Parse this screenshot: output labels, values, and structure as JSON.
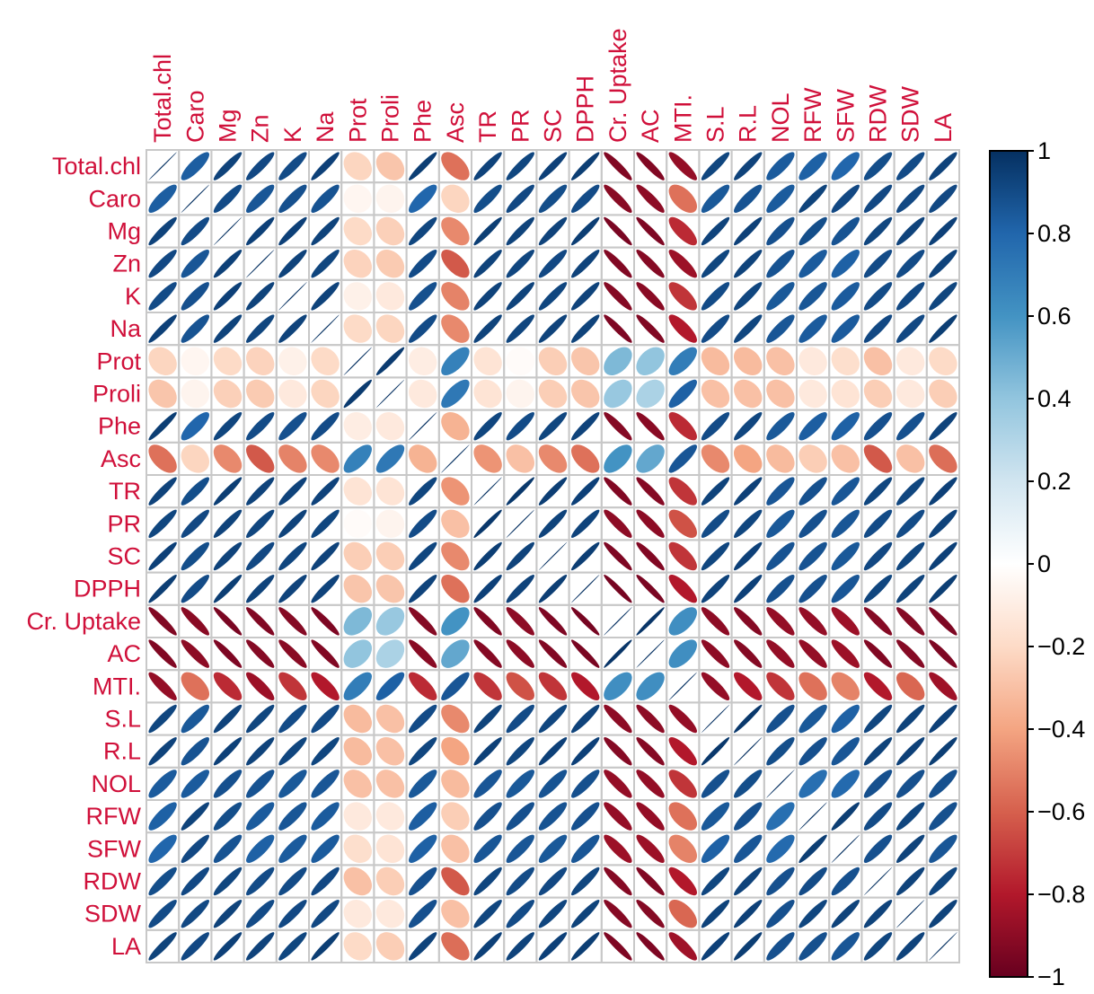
{
  "chart_data": {
    "type": "heatmap",
    "subtype": "correlation-ellipse",
    "variables": [
      "Total.chl",
      "Caro",
      "Mg",
      "Zn",
      "K",
      "Na",
      "Prot",
      "Proli",
      "Phe",
      "Asc",
      "TR",
      "PR",
      "SC",
      "DPPH",
      "Cr. Uptake",
      "AC",
      "MTI.",
      "S.L",
      "R.L",
      "NOL",
      "RFW",
      "SFW",
      "RDW",
      "SDW",
      "LA"
    ],
    "matrix": [
      [
        1.0,
        0.83,
        0.93,
        0.91,
        0.9,
        0.94,
        -0.22,
        -0.28,
        0.95,
        -0.55,
        0.93,
        0.92,
        0.94,
        0.95,
        -0.93,
        -0.93,
        -0.88,
        0.92,
        0.93,
        0.84,
        0.82,
        0.8,
        0.89,
        0.9,
        0.93
      ],
      [
        0.83,
        1.0,
        0.9,
        0.86,
        0.88,
        0.87,
        -0.05,
        -0.06,
        0.8,
        -0.22,
        0.89,
        0.91,
        0.89,
        0.9,
        -0.91,
        -0.9,
        -0.55,
        0.85,
        0.87,
        0.84,
        0.93,
        0.91,
        0.91,
        0.91,
        0.91
      ],
      [
        0.93,
        0.9,
        1.0,
        0.94,
        0.94,
        0.93,
        -0.2,
        -0.24,
        0.92,
        -0.48,
        0.95,
        0.93,
        0.93,
        0.95,
        -0.95,
        -0.94,
        -0.75,
        0.93,
        0.94,
        0.88,
        0.89,
        0.87,
        0.92,
        0.93,
        0.94
      ],
      [
        0.91,
        0.86,
        0.94,
        1.0,
        0.93,
        0.92,
        -0.23,
        -0.26,
        0.9,
        -0.62,
        0.93,
        0.92,
        0.91,
        0.93,
        -0.93,
        -0.92,
        -0.86,
        0.92,
        0.93,
        0.87,
        0.84,
        0.82,
        0.9,
        0.9,
        0.93
      ],
      [
        0.9,
        0.88,
        0.94,
        0.93,
        1.0,
        0.93,
        -0.08,
        -0.12,
        0.88,
        -0.5,
        0.93,
        0.93,
        0.92,
        0.93,
        -0.92,
        -0.91,
        -0.72,
        0.9,
        0.92,
        0.85,
        0.86,
        0.84,
        0.9,
        0.91,
        0.92
      ],
      [
        0.94,
        0.87,
        0.93,
        0.92,
        0.93,
        1.0,
        -0.2,
        -0.22,
        0.9,
        -0.48,
        0.93,
        0.92,
        0.93,
        0.93,
        -0.94,
        -0.93,
        -0.8,
        0.9,
        0.92,
        0.86,
        0.84,
        0.84,
        0.91,
        0.91,
        0.95
      ],
      [
        -0.22,
        -0.05,
        -0.2,
        -0.23,
        -0.08,
        -0.2,
        1.0,
        0.96,
        -0.1,
        0.68,
        -0.15,
        -0.02,
        -0.25,
        -0.28,
        0.45,
        0.4,
        0.7,
        -0.32,
        -0.32,
        -0.3,
        -0.12,
        -0.18,
        -0.3,
        -0.12,
        -0.2
      ],
      [
        -0.28,
        -0.06,
        -0.24,
        -0.26,
        -0.12,
        -0.22,
        0.96,
        1.0,
        -0.12,
        0.72,
        -0.15,
        -0.06,
        -0.25,
        -0.28,
        0.38,
        0.32,
        0.82,
        -0.3,
        -0.3,
        -0.3,
        -0.12,
        -0.15,
        -0.25,
        -0.12,
        -0.25
      ],
      [
        0.95,
        0.8,
        0.92,
        0.9,
        0.88,
        0.9,
        -0.1,
        -0.12,
        1.0,
        -0.35,
        0.92,
        0.9,
        0.92,
        0.93,
        -0.92,
        -0.91,
        -0.75,
        0.9,
        0.92,
        0.85,
        0.83,
        0.82,
        0.88,
        0.88,
        0.93
      ],
      [
        -0.55,
        -0.22,
        -0.48,
        -0.62,
        -0.5,
        -0.48,
        0.68,
        0.72,
        -0.35,
        1.0,
        -0.45,
        -0.3,
        -0.48,
        -0.55,
        0.6,
        0.52,
        0.86,
        -0.48,
        -0.4,
        -0.32,
        -0.25,
        -0.3,
        -0.62,
        -0.3,
        -0.56
      ],
      [
        0.93,
        0.89,
        0.95,
        0.93,
        0.93,
        0.93,
        -0.15,
        -0.15,
        0.92,
        -0.45,
        1.0,
        0.97,
        0.95,
        0.94,
        -0.93,
        -0.92,
        -0.72,
        0.93,
        0.94,
        0.86,
        0.88,
        0.86,
        0.92,
        0.92,
        0.94
      ],
      [
        0.92,
        0.91,
        0.93,
        0.92,
        0.93,
        0.92,
        -0.02,
        -0.06,
        0.9,
        -0.3,
        0.97,
        1.0,
        0.93,
        0.93,
        -0.9,
        -0.9,
        -0.64,
        0.9,
        0.92,
        0.85,
        0.88,
        0.86,
        0.9,
        0.9,
        0.93
      ],
      [
        0.94,
        0.89,
        0.93,
        0.91,
        0.92,
        0.93,
        -0.25,
        -0.25,
        0.92,
        -0.48,
        0.95,
        0.93,
        1.0,
        0.95,
        -0.94,
        -0.93,
        -0.72,
        0.92,
        0.94,
        0.87,
        0.87,
        0.85,
        0.91,
        0.92,
        0.94
      ],
      [
        0.95,
        0.9,
        0.95,
        0.93,
        0.93,
        0.93,
        -0.28,
        -0.28,
        0.93,
        -0.55,
        0.94,
        0.93,
        0.95,
        1.0,
        -0.96,
        -0.95,
        -0.8,
        0.93,
        0.94,
        0.88,
        0.88,
        0.86,
        0.92,
        0.93,
        0.95
      ],
      [
        -0.93,
        -0.91,
        -0.95,
        -0.93,
        -0.92,
        -0.94,
        0.45,
        0.38,
        -0.92,
        0.6,
        -0.93,
        -0.9,
        -0.94,
        -0.96,
        1.0,
        0.98,
        0.62,
        -0.9,
        -0.92,
        -0.88,
        -0.88,
        -0.86,
        -0.92,
        -0.92,
        -0.94
      ],
      [
        -0.93,
        -0.9,
        -0.94,
        -0.92,
        -0.91,
        -0.93,
        0.4,
        0.32,
        -0.91,
        0.52,
        -0.92,
        -0.9,
        -0.93,
        -0.95,
        0.98,
        1.0,
        0.62,
        -0.9,
        -0.92,
        -0.88,
        -0.88,
        -0.86,
        -0.93,
        -0.92,
        -0.94
      ],
      [
        -0.88,
        -0.55,
        -0.75,
        -0.86,
        -0.72,
        -0.8,
        0.7,
        0.82,
        -0.75,
        0.86,
        -0.72,
        -0.64,
        -0.72,
        -0.8,
        0.62,
        0.62,
        1.0,
        -0.88,
        -0.8,
        -0.72,
        -0.55,
        -0.5,
        -0.8,
        -0.58,
        -0.85
      ],
      [
        0.92,
        0.85,
        0.93,
        0.92,
        0.9,
        0.9,
        -0.32,
        -0.3,
        0.9,
        -0.48,
        0.93,
        0.9,
        0.92,
        0.93,
        -0.9,
        -0.9,
        -0.88,
        1.0,
        0.97,
        0.88,
        0.85,
        0.82,
        0.92,
        0.93,
        0.94
      ],
      [
        0.93,
        0.87,
        0.94,
        0.93,
        0.92,
        0.92,
        -0.32,
        -0.3,
        0.92,
        -0.4,
        0.94,
        0.92,
        0.94,
        0.94,
        -0.92,
        -0.92,
        -0.8,
        0.97,
        1.0,
        0.89,
        0.88,
        0.86,
        0.93,
        0.94,
        0.95
      ],
      [
        0.84,
        0.84,
        0.88,
        0.87,
        0.85,
        0.86,
        -0.3,
        -0.3,
        0.85,
        -0.32,
        0.86,
        0.85,
        0.87,
        0.88,
        -0.88,
        -0.88,
        -0.72,
        0.88,
        0.89,
        1.0,
        0.76,
        0.78,
        0.88,
        0.88,
        0.88
      ],
      [
        0.82,
        0.93,
        0.89,
        0.84,
        0.86,
        0.84,
        -0.12,
        -0.12,
        0.83,
        -0.25,
        0.88,
        0.88,
        0.87,
        0.88,
        -0.88,
        -0.88,
        -0.55,
        0.85,
        0.88,
        0.76,
        1.0,
        0.95,
        0.9,
        0.92,
        0.88
      ],
      [
        0.8,
        0.91,
        0.87,
        0.82,
        0.84,
        0.84,
        -0.18,
        -0.15,
        0.82,
        -0.3,
        0.86,
        0.86,
        0.85,
        0.86,
        -0.86,
        -0.86,
        -0.5,
        0.82,
        0.86,
        0.78,
        0.95,
        1.0,
        0.88,
        0.93,
        0.86
      ],
      [
        0.89,
        0.91,
        0.92,
        0.9,
        0.9,
        0.91,
        -0.3,
        -0.25,
        0.88,
        -0.62,
        0.92,
        0.9,
        0.91,
        0.92,
        -0.92,
        -0.93,
        -0.8,
        0.92,
        0.93,
        0.88,
        0.9,
        0.88,
        1.0,
        0.93,
        0.92
      ],
      [
        0.9,
        0.91,
        0.93,
        0.9,
        0.91,
        0.91,
        -0.12,
        -0.12,
        0.88,
        -0.3,
        0.92,
        0.9,
        0.92,
        0.93,
        -0.92,
        -0.92,
        -0.58,
        0.93,
        0.94,
        0.88,
        0.92,
        0.93,
        0.93,
        1.0,
        0.93
      ],
      [
        0.93,
        0.91,
        0.94,
        0.93,
        0.92,
        0.95,
        -0.2,
        -0.25,
        0.93,
        -0.56,
        0.94,
        0.93,
        0.94,
        0.95,
        -0.94,
        -0.94,
        -0.85,
        0.94,
        0.95,
        0.88,
        0.88,
        0.86,
        0.92,
        0.93,
        1.0
      ]
    ],
    "colorbar": {
      "range": [
        -1,
        1
      ],
      "ticks": [
        "1",
        "0.8",
        "0.6",
        "0.4",
        "0.2",
        "0",
        "−0.2",
        "−0.4",
        "−0.6",
        "−0.8",
        "−1"
      ],
      "colors": [
        "#67001f",
        "#b2182b",
        "#d6604d",
        "#f4a582",
        "#fddbc7",
        "#ffffff",
        "#d1e5f0",
        "#92c5de",
        "#4393c3",
        "#2166ac",
        "#053061"
      ]
    },
    "label_color": "#d0103a",
    "grid_color": "#c8c8c8"
  }
}
